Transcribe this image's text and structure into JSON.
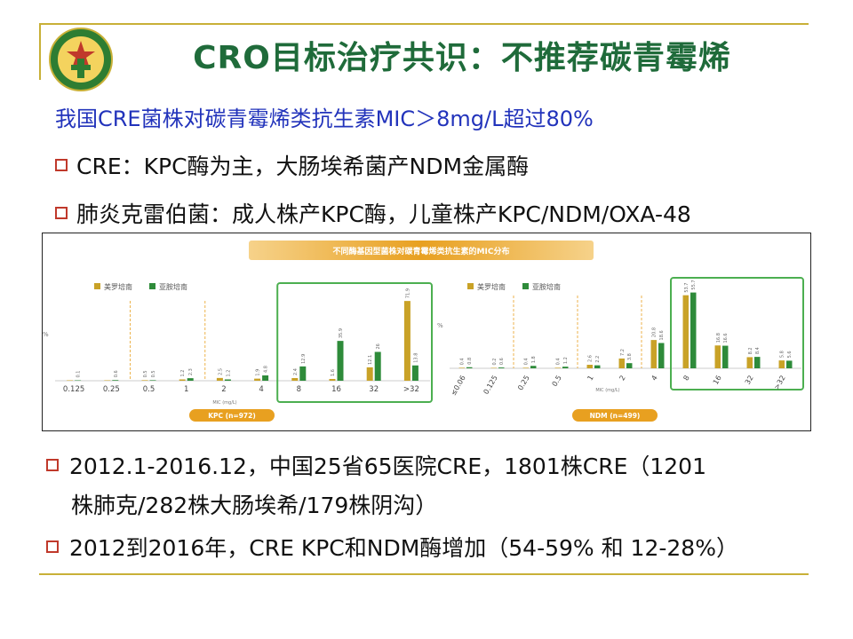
{
  "title": "CRO目标治疗共识：不推荐碳青霉烯",
  "subtitle": "我国CRE菌株对碳青霉烯类抗生素MIC＞8mg/L超过80%",
  "bullets_top": [
    "CRE：KPC酶为主，大肠埃希菌产NDM金属酶",
    "肺炎克雷伯菌：成人株产KPC酶，儿童株产KPC/NDM/OXA-48"
  ],
  "bullets_bottom": [
    {
      "line1": "2012.1-2016.12，中国25省65医院CRE，1801株CRE（1201",
      "line2": "株肺克/282株大肠埃希/179株阴沟）"
    },
    {
      "line1": "2012到2016年，CRE KPC和NDM酶增加（54-59% 和 12-28%）",
      "line2": ""
    }
  ],
  "colors": {
    "meropenem": "#c9a227",
    "imipenem": "#2e8b3a",
    "highlight_box": "#4caf50",
    "banner": "#e8a020"
  },
  "chart_data": [
    {
      "type": "bar",
      "title": "不同酶基因型菌株对碳青霉烯类抗生素的MIC分布",
      "ylabel": "%",
      "xlabel": "MIC (mg/L)",
      "footer_label": "KPC (n=972)",
      "categories": [
        "0.125",
        "0.25",
        "0.5",
        "1",
        "2",
        "4",
        "8",
        "16",
        "32",
        ">32"
      ],
      "series": [
        {
          "name": "美罗培南",
          "values": [
            0,
            0,
            0.5,
            1.2,
            2.5,
            1.9,
            2.4,
            1.6,
            12.1,
            71.9
          ]
        },
        {
          "name": "亚胺培南",
          "values": [
            0.1,
            0.6,
            0.5,
            2.3,
            1.2,
            4.8,
            12.9,
            35.9,
            26,
            13.8
          ]
        }
      ],
      "ylim": [
        0,
        80
      ]
    },
    {
      "type": "bar",
      "ylabel": "%",
      "xlabel": "MIC (mg/L)",
      "footer_label": "NDM (n=499)",
      "categories": [
        "≤0.06",
        "0.125",
        "0.25",
        "0.5",
        "1",
        "2",
        "4",
        "8",
        "16",
        "32",
        ">32"
      ],
      "series": [
        {
          "name": "美罗培南",
          "values": [
            0.4,
            0.2,
            0.4,
            0.4,
            2.6,
            7.2,
            20.8,
            53.7,
            16.8,
            8.2,
            5.8
          ]
        },
        {
          "name": "亚胺培南",
          "values": [
            0.8,
            0.6,
            1.8,
            1.2,
            2.2,
            3.8,
            18.6,
            55.7,
            16.6,
            8.4,
            5.6
          ]
        }
      ],
      "ylim": [
        0,
        60
      ]
    }
  ],
  "logo": {
    "icon": "hospital-emblem"
  }
}
